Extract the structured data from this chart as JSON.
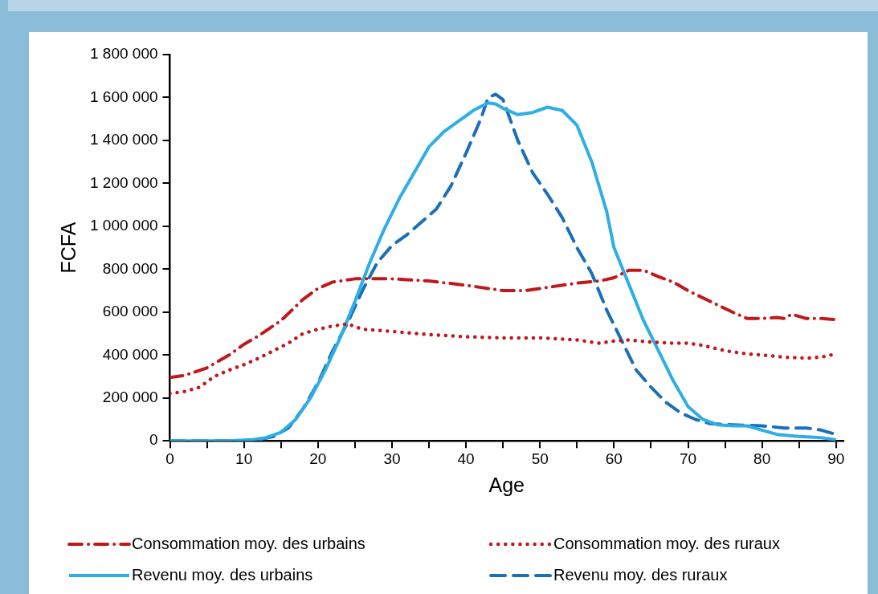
{
  "chart_data": {
    "type": "line",
    "xlabel": "Age",
    "ylabel": "FCFA",
    "xlim": [
      0,
      91
    ],
    "xticks": [
      0,
      {
        "value": 5,
        "label": null
      },
      10,
      {
        "value": 15,
        "label": null
      },
      20,
      {
        "value": 25,
        "label": null
      },
      30,
      {
        "value": 35,
        "label": null
      },
      40,
      {
        "value": 45,
        "label": null
      },
      50,
      {
        "value": 55,
        "label": null
      },
      60,
      {
        "value": 65,
        "label": null
      },
      70,
      {
        "value": 75,
        "label": null
      },
      80,
      {
        "value": 85,
        "label": null
      },
      90
    ],
    "ylim": [
      0,
      1800000
    ],
    "yticks": [
      {
        "value": 0,
        "label": "0"
      },
      {
        "value": 200000,
        "label": "200 000"
      },
      {
        "value": 400000,
        "label": "400 000"
      },
      {
        "value": 600000,
        "label": "600 000"
      },
      {
        "value": 800000,
        "label": "800 000"
      },
      {
        "value": 1000000,
        "label": "1 000 000"
      },
      {
        "value": 1200000,
        "label": "1 200 000"
      },
      {
        "value": 1400000,
        "label": "1 400 000"
      },
      {
        "value": 1600000,
        "label": "1 600 000"
      },
      {
        "value": 1800000,
        "label": "1 800 000"
      }
    ],
    "grid": false,
    "legend": "bottom",
    "marker": "none",
    "series": [
      {
        "name": "Consommation moy. des urbains",
        "color": "#c0191c",
        "line_style": "dashdot",
        "x": [
          0,
          2,
          5,
          8,
          10,
          12,
          15,
          18,
          20,
          22,
          25,
          30,
          35,
          40,
          45,
          48,
          50,
          55,
          58,
          60,
          62,
          64,
          66,
          68,
          70,
          73,
          76,
          78,
          80,
          82,
          83,
          84,
          86,
          88,
          90
        ],
        "values": [
          295000,
          305000,
          340000,
          400000,
          450000,
          490000,
          560000,
          660000,
          710000,
          740000,
          755000,
          755000,
          745000,
          725000,
          700000,
          700000,
          710000,
          735000,
          745000,
          760000,
          795000,
          795000,
          765000,
          740000,
          700000,
          650000,
          600000,
          570000,
          570000,
          575000,
          570000,
          590000,
          570000,
          570000,
          565000
        ]
      },
      {
        "name": "Consommation moy. des ruraux",
        "color": "#c0191c",
        "line_style": "dotted",
        "x": [
          0,
          2,
          4,
          6,
          8,
          10,
          12,
          14,
          16,
          18,
          20,
          22,
          24,
          26,
          30,
          35,
          40,
          45,
          50,
          55,
          58,
          60,
          62,
          65,
          68,
          70,
          72,
          75,
          78,
          80,
          83,
          86,
          88,
          90
        ],
        "values": [
          220000,
          230000,
          250000,
          300000,
          330000,
          355000,
          385000,
          420000,
          455000,
          500000,
          520000,
          535000,
          545000,
          520000,
          510000,
          495000,
          485000,
          480000,
          480000,
          470000,
          455000,
          465000,
          470000,
          460000,
          455000,
          455000,
          445000,
          420000,
          405000,
          400000,
          390000,
          385000,
          390000,
          405000
        ]
      },
      {
        "name": "Revenu moy. des urbains",
        "color": "#2eaee4",
        "line_style": "solid",
        "x": [
          0,
          8,
          11,
          13,
          15,
          17,
          19,
          21,
          23,
          25,
          27,
          29,
          31,
          33,
          35,
          37,
          39,
          41,
          43,
          44,
          45,
          47,
          49,
          51,
          53,
          55,
          57,
          59,
          60,
          62,
          64,
          66,
          68,
          70,
          72,
          74,
          76,
          78,
          80,
          82,
          85,
          88,
          90
        ],
        "values": [
          0,
          0,
          5000,
          15000,
          40000,
          100000,
          200000,
          330000,
          480000,
          650000,
          830000,
          990000,
          1130000,
          1250000,
          1370000,
          1440000,
          1490000,
          1540000,
          1575000,
          1570000,
          1550000,
          1520000,
          1530000,
          1555000,
          1540000,
          1470000,
          1300000,
          1070000,
          900000,
          730000,
          560000,
          420000,
          280000,
          160000,
          100000,
          75000,
          70000,
          70000,
          50000,
          30000,
          20000,
          15000,
          5000
        ]
      },
      {
        "name": "Revenu moy. des ruraux",
        "color": "#1a6fb8",
        "line_style": "dashed",
        "x": [
          0,
          10,
          12,
          14,
          16,
          18,
          20,
          22,
          24,
          26,
          28,
          30,
          32,
          34,
          36,
          38,
          40,
          42,
          43,
          44,
          45,
          47,
          49,
          51,
          53,
          55,
          57,
          59,
          61,
          63,
          65,
          67,
          69,
          71,
          73,
          76,
          80,
          83,
          86,
          88,
          90
        ],
        "values": [
          0,
          0,
          5000,
          20000,
          60000,
          150000,
          270000,
          420000,
          550000,
          700000,
          830000,
          910000,
          960000,
          1020000,
          1080000,
          1190000,
          1340000,
          1500000,
          1600000,
          1615000,
          1590000,
          1400000,
          1250000,
          1150000,
          1040000,
          900000,
          780000,
          610000,
          470000,
          330000,
          250000,
          180000,
          130000,
          100000,
          80000,
          75000,
          70000,
          60000,
          60000,
          50000,
          30000
        ]
      }
    ]
  }
}
